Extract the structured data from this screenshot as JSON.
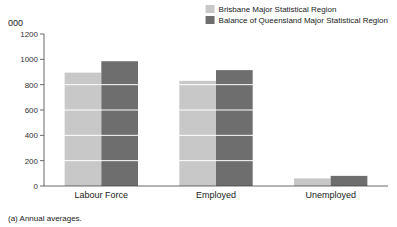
{
  "chart_data": {
    "type": "bar",
    "categories": [
      "Labour Force",
      "Employed",
      "Unemployed"
    ],
    "series": [
      {
        "name": "Brisbane Major Statistical Region",
        "color": "#c8c8c8",
        "values": [
          895,
          830,
          60
        ]
      },
      {
        "name": "Balance of Queensland Major Statistical Region",
        "color": "#6e6e6e",
        "values": [
          985,
          915,
          80
        ]
      }
    ],
    "ylabel": "000",
    "footnote": "(a) Annual averages.",
    "ylim": [
      0,
      1200
    ],
    "yticks": [
      0,
      200,
      400,
      600,
      800,
      1000,
      1200
    ],
    "grid": true,
    "legend": "upper right"
  }
}
